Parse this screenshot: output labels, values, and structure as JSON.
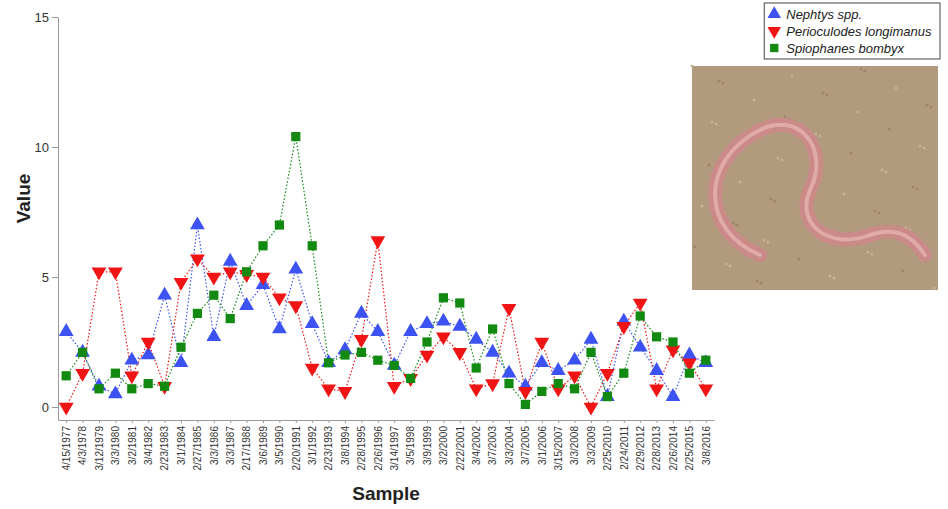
{
  "chart_data": {
    "type": "line",
    "x_label": "Sample",
    "y_label": "Value",
    "categories": [
      "4/15/1977",
      "4/3/1978",
      "3/12/1979",
      "3/3/1980",
      "3/2/1981",
      "3/4/1982",
      "2/23/1983",
      "3/1/1984",
      "2/27/1985",
      "3/3/1986",
      "3/3/1987",
      "2/17/1988",
      "3/6/1989",
      "3/5/1990",
      "2/20/1991",
      "3/1/1992",
      "2/23/1993",
      "3/8/1994",
      "2/28/1995",
      "2/26/1996",
      "3/14/1997",
      "3/5/1998",
      "3/9/1999",
      "3/2/2000",
      "2/22/2001",
      "3/4/2002",
      "3/7/2003",
      "3/3/2004",
      "3/7/2005",
      "3/1/2006",
      "3/15/2007",
      "3/3/2008",
      "3/3/2009",
      "2/25/2010",
      "2/24/2011",
      "2/29/2012",
      "2/28/2013",
      "2/26/2014",
      "2/25/2015",
      "3/8/2016"
    ],
    "series": [
      {
        "name": "Nephtys spp.",
        "color": "#3d52f2",
        "marker": "triangle-up",
        "line_style": "dotted",
        "values": [
          2.9,
          2.1,
          0.8,
          0.5,
          1.8,
          2.0,
          4.3,
          1.7,
          7.0,
          2.7,
          5.6,
          3.9,
          4.7,
          3.0,
          5.3,
          3.2,
          1.7,
          2.2,
          3.6,
          2.9,
          1.6,
          2.9,
          3.2,
          3.3,
          3.1,
          2.6,
          2.1,
          1.3,
          0.8,
          1.7,
          1.4,
          1.8,
          2.6,
          0.4,
          3.3,
          2.3,
          1.4,
          0.4,
          2.0,
          1.7
        ]
      },
      {
        "name": "Perioculodes longimanus",
        "color": "#f01414",
        "marker": "triangle-down",
        "line_style": "dotted",
        "values": [
          0,
          1.3,
          5.2,
          5.2,
          1.2,
          2.5,
          0.8,
          4.8,
          5.7,
          5.0,
          5.2,
          5.1,
          5.0,
          4.2,
          3.9,
          1.5,
          0.7,
          0.6,
          2.6,
          6.4,
          0.8,
          1.1,
          2.0,
          2.7,
          2.1,
          0.7,
          0.9,
          3.8,
          0.6,
          2.5,
          0.7,
          1.2,
          0,
          1.3,
          3.1,
          4.0,
          0.7,
          2.2,
          1.7,
          0.7
        ]
      },
      {
        "name": "Spiophanes bombyx",
        "color": "#128a12",
        "marker": "square",
        "line_style": "dotted",
        "values": [
          1.2,
          2.1,
          0.7,
          1.3,
          0.7,
          0.9,
          0.8,
          2.3,
          3.6,
          4.3,
          3.4,
          5.2,
          6.2,
          7.0,
          10.4,
          6.2,
          1.7,
          2.0,
          2.1,
          1.8,
          1.6,
          1.1,
          2.5,
          4.2,
          4.0,
          1.5,
          3.0,
          0.9,
          0.1,
          0.6,
          0.9,
          0.7,
          2.1,
          0.4,
          1.3,
          3.5,
          2.7,
          2.5,
          1.3,
          1.8
        ]
      }
    ],
    "ylim": [
      -0.5,
      15
    ],
    "yticks": [
      0,
      5,
      10,
      15
    ],
    "grid": false,
    "legend": "top-right"
  }
}
